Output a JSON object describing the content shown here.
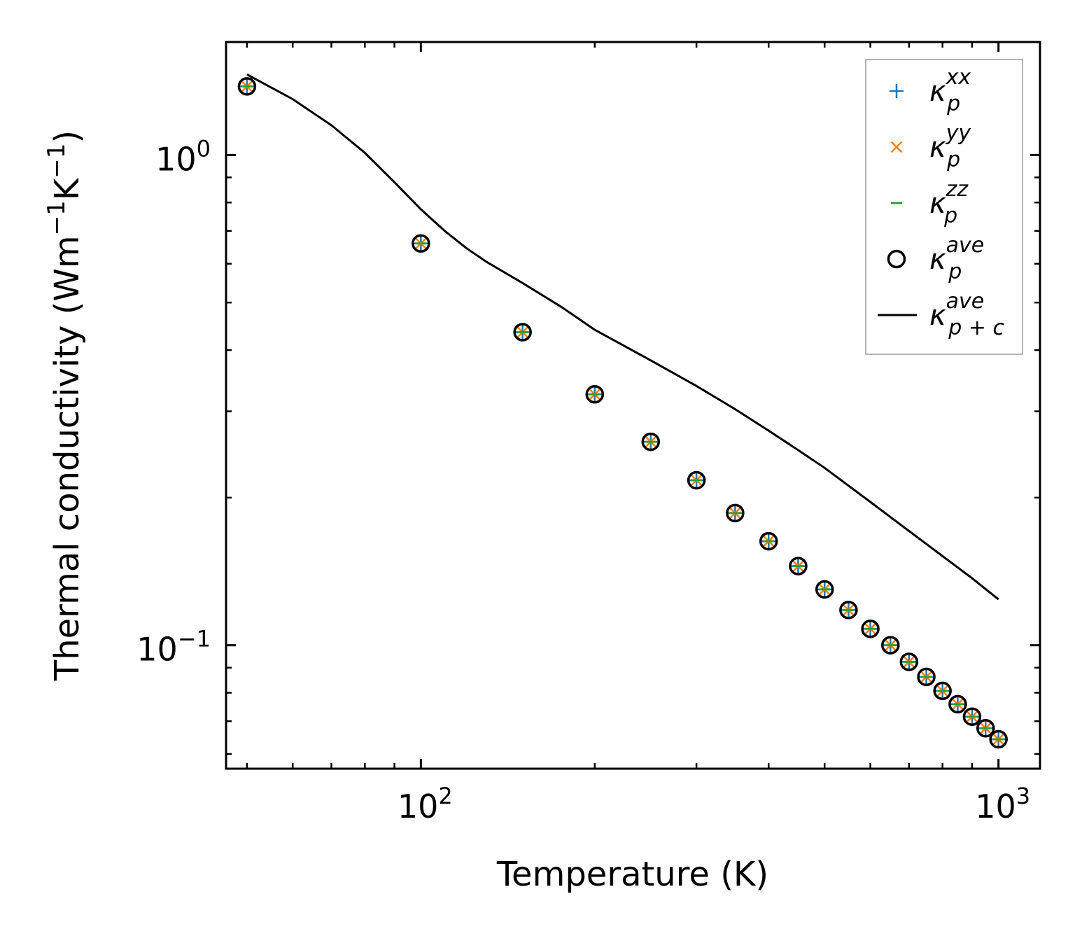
{
  "chart_data": {
    "type": "scatter",
    "xlabel": "Temperature (K)",
    "ylabel": "Thermal conductivity (Wm",
    "ylabel_parts": [
      "Thermal conductivity (Wm",
      "−1",
      "K",
      "−1",
      ")"
    ],
    "xscale": "log",
    "yscale": "log",
    "xlim": [
      46,
      1180
    ],
    "ylim": [
      0.056,
      1.7
    ],
    "x_ticks": [
      {
        "value": 100,
        "base": "10",
        "exp": "2"
      },
      {
        "value": 1000,
        "base": "10",
        "exp": "3"
      }
    ],
    "y_ticks": [
      {
        "value": 0.1,
        "base": "10",
        "exp": "−1"
      },
      {
        "value": 1.0,
        "base": "10",
        "exp": "0"
      }
    ],
    "legend_position": "top-right",
    "grid": false,
    "x": [
      50,
      100,
      150,
      200,
      250,
      300,
      350,
      400,
      450,
      500,
      550,
      600,
      650,
      700,
      750,
      800,
      850,
      900,
      950,
      1000
    ],
    "series": [
      {
        "name": "κ_p^xx",
        "legend_base": "κ",
        "legend_sub": "p",
        "legend_sup": "xx",
        "marker": "plus",
        "color": "#1f77b4",
        "values": [
          1.38,
          0.66,
          0.435,
          0.325,
          0.26,
          0.217,
          0.186,
          0.163,
          0.145,
          0.13,
          0.118,
          0.108,
          0.1,
          0.0925,
          0.0862,
          0.0807,
          0.0758,
          0.0715,
          0.0677,
          0.0643
        ]
      },
      {
        "name": "κ_p^yy",
        "legend_base": "κ",
        "legend_sub": "p",
        "legend_sup": "yy",
        "marker": "x",
        "color": "#ff7f0e",
        "values": [
          1.38,
          0.66,
          0.435,
          0.325,
          0.26,
          0.217,
          0.186,
          0.163,
          0.145,
          0.13,
          0.118,
          0.108,
          0.1,
          0.0925,
          0.0862,
          0.0807,
          0.0758,
          0.0715,
          0.0677,
          0.0643
        ]
      },
      {
        "name": "κ_p^zz",
        "legend_base": "κ",
        "legend_sub": "p",
        "legend_sup": "zz",
        "marker": "hline",
        "color": "#2ca02c",
        "values": [
          1.38,
          0.66,
          0.435,
          0.325,
          0.26,
          0.217,
          0.186,
          0.163,
          0.145,
          0.13,
          0.118,
          0.108,
          0.1,
          0.0925,
          0.0862,
          0.0807,
          0.0758,
          0.0715,
          0.0677,
          0.0643
        ]
      },
      {
        "name": "κ_p^ave",
        "legend_base": "κ",
        "legend_sub": "p",
        "legend_sup": "ave",
        "marker": "circle",
        "color": "#000000",
        "values": [
          1.38,
          0.66,
          0.435,
          0.325,
          0.26,
          0.217,
          0.186,
          0.163,
          0.145,
          0.13,
          0.118,
          0.108,
          0.1,
          0.0925,
          0.0862,
          0.0807,
          0.0758,
          0.0715,
          0.0677,
          0.0643
        ]
      },
      {
        "name": "κ_p+c^ave",
        "legend_base": "κ",
        "legend_sub": "p + c",
        "legend_sup": "ave",
        "marker": "line",
        "color": "#000000",
        "x": [
          50,
          60,
          70,
          80,
          90,
          100,
          110,
          120,
          130,
          150,
          175,
          200,
          250,
          300,
          350,
          400,
          450,
          500,
          600,
          700,
          800,
          900,
          1000
        ],
        "values": [
          1.46,
          1.3,
          1.15,
          1.01,
          0.88,
          0.775,
          0.7,
          0.645,
          0.605,
          0.548,
          0.49,
          0.44,
          0.381,
          0.338,
          0.303,
          0.274,
          0.25,
          0.23,
          0.196,
          0.171,
          0.152,
          0.137,
          0.124
        ]
      }
    ]
  }
}
